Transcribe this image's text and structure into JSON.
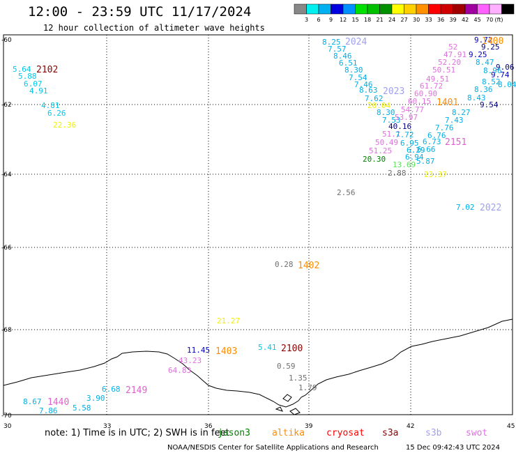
{
  "title": "12:00 - 23:59 UTC 11/17/2024",
  "subtitle": "12 hour collection of altimeter wave heights",
  "colorbar": {
    "colors": [
      "#888888",
      "#00f0f0",
      "#00b0f0",
      "#0000e0",
      "#0090ff",
      "#00e000",
      "#00c000",
      "#009000",
      "#ffff00",
      "#ffd000",
      "#ff9000",
      "#ff0000",
      "#d00000",
      "#a00000",
      "#a000a0",
      "#ff60ff",
      "#ffb0ff",
      "#000000"
    ],
    "labels": [
      "3",
      "6",
      "9",
      "12",
      "15",
      "18",
      "21",
      "24",
      "27",
      "30",
      "33",
      "36",
      "39",
      "42",
      "45",
      "70",
      "(ft)"
    ]
  },
  "axes": {
    "x_ticks": [
      "30",
      "33",
      "36",
      "39",
      "42",
      "45"
    ],
    "y_ticks": [
      "-60",
      "-62",
      "-64",
      "-66",
      "-68",
      "-70"
    ]
  },
  "points": [
    {
      "t": "5.64",
      "c": "#00c8e8"
    },
    {
      "t": "5.88",
      "c": "#00c8e8"
    },
    {
      "t": "6.07",
      "c": "#00c8e8"
    },
    {
      "t": "4.91",
      "c": "#00c8e8"
    },
    {
      "t": "4.81",
      "c": "#00c8e8"
    },
    {
      "t": "6.26",
      "c": "#00c8e8"
    },
    {
      "t": "22.36",
      "c": "#f0f000"
    },
    {
      "t": "8.25",
      "c": "#00b0e8"
    },
    {
      "t": "7.57",
      "c": "#00b0e8"
    },
    {
      "t": "8.46",
      "c": "#00b0e8"
    },
    {
      "t": "6.51",
      "c": "#00b0e8"
    },
    {
      "t": "8.30",
      "c": "#00b0e8"
    },
    {
      "t": "7.54",
      "c": "#00b0e8"
    },
    {
      "t": "7.46",
      "c": "#00b0e8"
    },
    {
      "t": "8.63",
      "c": "#00b0e8"
    },
    {
      "t": "7.62",
      "c": "#00b0e8"
    },
    {
      "t": "20.04",
      "c": "#f0f000"
    },
    {
      "t": "8.30",
      "c": "#00b0e8"
    },
    {
      "t": "7.53",
      "c": "#00b0e8"
    },
    {
      "t": "40.16",
      "c": "#000080"
    },
    {
      "t": "51.1",
      "c": "#e070e0"
    },
    {
      "t": "7.72",
      "c": "#00b0e8"
    },
    {
      "t": "50.49",
      "c": "#e070e0"
    },
    {
      "t": "6.95",
      "c": "#00b0e8"
    },
    {
      "t": "51.25",
      "c": "#e070e0"
    },
    {
      "t": "6.29",
      "c": "#00b0e8"
    },
    {
      "t": "6.94",
      "c": "#00b0e8"
    },
    {
      "t": "5.87",
      "c": "#00b0e8"
    },
    {
      "t": "20.30",
      "c": "#008000"
    },
    {
      "t": "13.69",
      "c": "#60e060"
    },
    {
      "t": "2.88",
      "c": "#707070"
    },
    {
      "t": "23.37",
      "c": "#f0f000"
    },
    {
      "t": "9.72",
      "c": "#0000c0"
    },
    {
      "t": "52",
      "c": "#e070e0"
    },
    {
      "t": "47.91",
      "c": "#e070e0"
    },
    {
      "t": "9.25",
      "c": "#000080"
    },
    {
      "t": "9.25",
      "c": "#0000c0"
    },
    {
      "t": "52.20",
      "c": "#e070e0"
    },
    {
      "t": "8.47",
      "c": "#00b0e8"
    },
    {
      "t": "50.51",
      "c": "#e070e0"
    },
    {
      "t": "9.06",
      "c": "#000080"
    },
    {
      "t": "8.96",
      "c": "#00b0e8"
    },
    {
      "t": "9.74",
      "c": "#0000c0"
    },
    {
      "t": "49.51",
      "c": "#e070e0"
    },
    {
      "t": "8.52",
      "c": "#00b0e8"
    },
    {
      "t": "8.04",
      "c": "#00b0e8"
    },
    {
      "t": "61.72",
      "c": "#e070e0"
    },
    {
      "t": "8.36",
      "c": "#00b0e8"
    },
    {
      "t": "60.90",
      "c": "#e070e0"
    },
    {
      "t": "8.43",
      "c": "#00b0e8"
    },
    {
      "t": "60.15",
      "c": "#e070e0"
    },
    {
      "t": "9.54",
      "c": "#000080"
    },
    {
      "t": "54.77",
      "c": "#e070e0"
    },
    {
      "t": "8.27",
      "c": "#00b0e8"
    },
    {
      "t": "53.97",
      "c": "#e070e0"
    },
    {
      "t": "7.43",
      "c": "#00b0e8"
    },
    {
      "t": "7.76",
      "c": "#00b0e8"
    },
    {
      "t": "6.76",
      "c": "#00b0e8"
    },
    {
      "t": "6.73",
      "c": "#00b0e8"
    },
    {
      "t": "6.66",
      "c": "#00b0e8"
    },
    {
      "t": "2.56",
      "c": "#707070"
    },
    {
      "t": "7.02",
      "c": "#00b0e8"
    },
    {
      "t": "0.28",
      "c": "#707070"
    },
    {
      "t": "21.27",
      "c": "#f0f000"
    },
    {
      "t": "11.45",
      "c": "#0000c0"
    },
    {
      "t": "5.41",
      "c": "#00c8e8"
    },
    {
      "t": "43.23",
      "c": "#e070e0"
    },
    {
      "t": "64.83",
      "c": "#e070e0"
    },
    {
      "t": "0.59",
      "c": "#707070"
    },
    {
      "t": "1.35",
      "c": "#707070"
    },
    {
      "t": "1.79",
      "c": "#707070"
    },
    {
      "t": "6.68",
      "c": "#00b0e8"
    },
    {
      "t": "3.90",
      "c": "#00b0e8"
    },
    {
      "t": "8.67",
      "c": "#00b0e8"
    },
    {
      "t": "7.86",
      "c": "#00b0e8"
    },
    {
      "t": "5.58",
      "c": "#00b0e8"
    }
  ],
  "track_ids": [
    {
      "t": "2102",
      "c": "#8b0000"
    },
    {
      "t": "2024",
      "c": "#a0a0f0"
    },
    {
      "t": "2023",
      "c": "#a0a0f0"
    },
    {
      "t": "1401",
      "c": "#ff8c00"
    },
    {
      "t": "2151",
      "c": "#e060d0"
    },
    {
      "t": "2022",
      "c": "#a0a0f0"
    },
    {
      "t": "1402",
      "c": "#ff8c00"
    },
    {
      "t": "1403",
      "c": "#ff8c00"
    },
    {
      "t": "2100",
      "c": "#8b0000"
    },
    {
      "t": "2149",
      "c": "#e060d0"
    },
    {
      "t": "1440",
      "c": "#e060d0"
    },
    {
      "t": "1400",
      "c": "#ff8c00"
    }
  ],
  "note": {
    "text": "note: 1) Time is in UTC; 2) SWH is in feet",
    "missions": [
      {
        "name": "jason3",
        "c": "#008000"
      },
      {
        "name": "altika",
        "c": "#ff8c00"
      },
      {
        "name": "cryosat",
        "c": "#ff0000"
      },
      {
        "name": "s3a",
        "c": "#8b0000"
      },
      {
        "name": "s3b",
        "c": "#a0a0f0"
      },
      {
        "name": "swot",
        "c": "#e070e0"
      }
    ]
  },
  "footer": {
    "org": "NOAA/NESDIS Center for Satellite Applications and Research",
    "timestamp": "15 Dec 09:42:43 UTC 2024"
  }
}
